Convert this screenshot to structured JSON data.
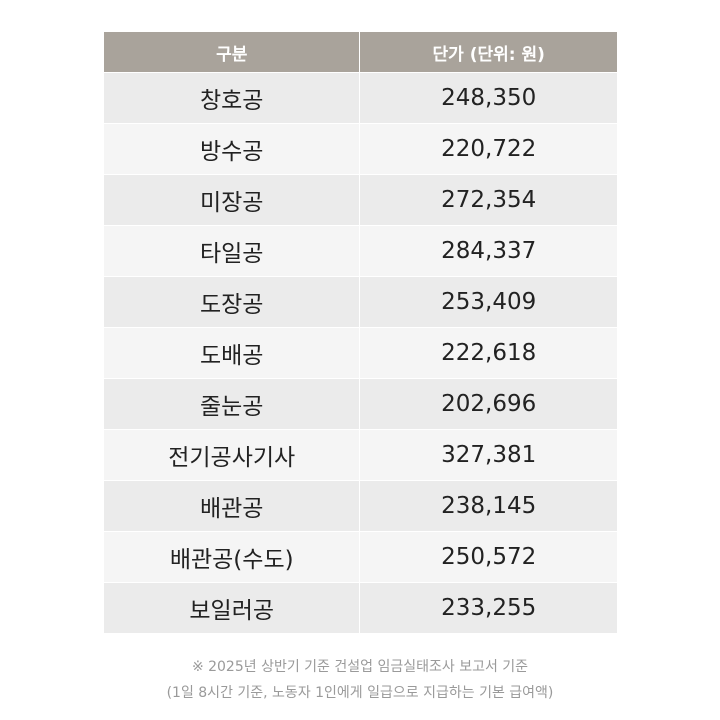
{
  "table": {
    "headers": [
      "구분",
      "단가 (단위: 원)"
    ],
    "rows": [
      [
        "창호공",
        "248,350"
      ],
      [
        "방수공",
        "220,722"
      ],
      [
        "미장공",
        "272,354"
      ],
      [
        "타일공",
        "284,337"
      ],
      [
        "도장공",
        "253,409"
      ],
      [
        "도배공",
        "222,618"
      ],
      [
        "줄눈공",
        "202,696"
      ],
      [
        "전기공사기사",
        "327,381"
      ],
      [
        "배관공",
        "238,145"
      ],
      [
        "배관공(수도)",
        "250,572"
      ],
      [
        "보일러공",
        "233,255"
      ]
    ]
  },
  "notes": {
    "line1": "※ 2025년 상반기 기준 건설업 임금실태조사 보고서 기준",
    "line2": "(1일 8시간 기준, 노동자 1인에게 일급으로 지급하는 기본 급여액)"
  },
  "colors": {
    "header_bg": "#a9a39b",
    "row_odd_bg": "#ebebeb",
    "row_even_bg": "#f5f5f5",
    "note_text": "#9a9a9a"
  }
}
